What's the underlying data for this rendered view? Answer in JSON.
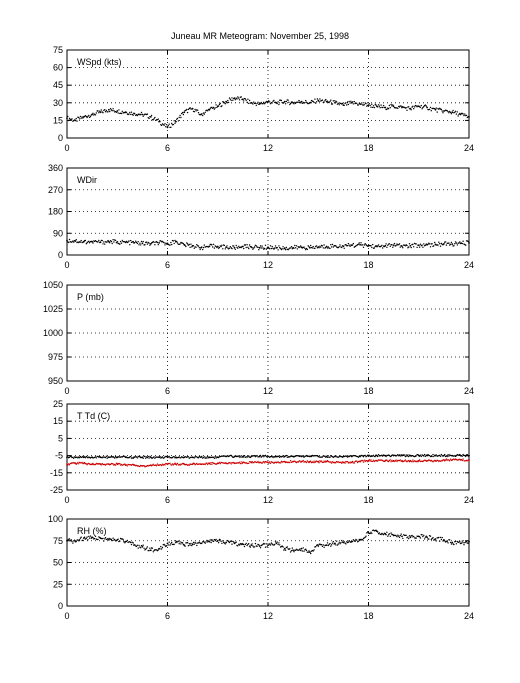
{
  "title": "Juneau MR Meteogram:  November 25, 1998",
  "chart_data": [
    {
      "type": "scatter",
      "panel_label": "WSpd (kts)",
      "xlim": [
        0,
        24
      ],
      "ylim": [
        0,
        75
      ],
      "xticks": [
        "0",
        "6",
        "12",
        "18",
        "24"
      ],
      "yticks": [
        "0",
        "15",
        "30",
        "45",
        "60",
        "75"
      ],
      "grid": true,
      "series": [
        {
          "color": "#000000",
          "x": [
            0,
            0.5,
            1,
            1.5,
            2,
            2.5,
            3,
            3.5,
            4,
            4.5,
            5,
            5.5,
            6,
            6.5,
            7,
            7.5,
            8,
            8.5,
            9,
            9.5,
            10,
            10.5,
            11,
            11.5,
            12,
            12.5,
            13,
            13.5,
            14,
            14.5,
            15,
            15.5,
            16,
            16.5,
            17,
            17.5,
            18,
            18.5,
            19,
            19.5,
            20,
            20.5,
            21,
            21.5,
            22,
            22.5,
            23,
            23.5,
            24
          ],
          "y": [
            17,
            15,
            18,
            20,
            22,
            24,
            23,
            22,
            21,
            20,
            18,
            14,
            9,
            14,
            22,
            25,
            20,
            24,
            27,
            31,
            34,
            33,
            30,
            29,
            31,
            30,
            31,
            30,
            31,
            30,
            32,
            31,
            30,
            28,
            30,
            29,
            28,
            27,
            26,
            27,
            26,
            25,
            27,
            26,
            24,
            23,
            22,
            20,
            18
          ]
        }
      ]
    },
    {
      "type": "scatter",
      "panel_label": "WDir",
      "xlim": [
        0,
        24
      ],
      "ylim": [
        0,
        360
      ],
      "xticks": [
        "0",
        "6",
        "12",
        "18",
        "24"
      ],
      "yticks": [
        "0",
        "90",
        "180",
        "270",
        "360"
      ],
      "grid": true,
      "series": [
        {
          "color": "#000000",
          "x": [
            0,
            0.5,
            1,
            1.5,
            2,
            2.5,
            3,
            3.5,
            4,
            4.5,
            5,
            5.5,
            6,
            6.5,
            7,
            7.5,
            8,
            8.5,
            9,
            9.5,
            10,
            10.5,
            11,
            11.5,
            12,
            12.5,
            13,
            13.5,
            14,
            14.5,
            15,
            15.5,
            16,
            16.5,
            17,
            17.5,
            18,
            18.5,
            19,
            19.5,
            20,
            20.5,
            21,
            21.5,
            22,
            22.5,
            23,
            23.5,
            24
          ],
          "y": [
            60,
            58,
            55,
            55,
            53,
            55,
            54,
            52,
            50,
            48,
            46,
            50,
            48,
            55,
            42,
            38,
            30,
            36,
            35,
            32,
            30,
            35,
            33,
            30,
            32,
            30,
            28,
            30,
            32,
            30,
            33,
            35,
            38,
            36,
            40,
            42,
            38,
            35,
            38,
            40,
            36,
            38,
            40,
            42,
            44,
            46,
            45,
            48,
            50
          ]
        }
      ]
    },
    {
      "type": "scatter",
      "panel_label": "P (mb)",
      "xlim": [
        0,
        24
      ],
      "ylim": [
        950,
        1050
      ],
      "xticks": [
        "0",
        "6",
        "12",
        "18",
        "24"
      ],
      "yticks": [
        "950",
        "975",
        "1000",
        "1025",
        "1050"
      ],
      "grid": true,
      "series": []
    },
    {
      "type": "scatter",
      "panel_label": "T Td (C)",
      "xlim": [
        0,
        24
      ],
      "ylim": [
        -25,
        25
      ],
      "xticks": [
        "0",
        "6",
        "12",
        "18",
        "24"
      ],
      "yticks": [
        "-25",
        "-15",
        "-5",
        "5",
        "15",
        "25"
      ],
      "grid": true,
      "series": [
        {
          "color": "#000000",
          "x": [
            0,
            0.5,
            1,
            1.5,
            2,
            2.5,
            3,
            3.5,
            4,
            4.5,
            5,
            5.5,
            6,
            6.5,
            7,
            7.5,
            8,
            8.5,
            9,
            9.5,
            10,
            10.5,
            11,
            11.5,
            12,
            12.5,
            13,
            13.5,
            14,
            14.5,
            15,
            15.5,
            16,
            16.5,
            17,
            17.5,
            18,
            18.5,
            19,
            19.5,
            20,
            20.5,
            21,
            21.5,
            22,
            22.5,
            23,
            23.5,
            24
          ],
          "y": [
            -6,
            -6,
            -6,
            -6,
            -6,
            -6,
            -6,
            -6,
            -6,
            -6,
            -6,
            -6,
            -6,
            -6,
            -6,
            -6,
            -6,
            -6,
            -6,
            -5.5,
            -5.5,
            -5.5,
            -5.5,
            -5.5,
            -5.5,
            -5.5,
            -5.5,
            -5.5,
            -5.5,
            -5.5,
            -5.5,
            -5.5,
            -5.5,
            -5.5,
            -5.5,
            -5.5,
            -5,
            -5,
            -5,
            -5,
            -5,
            -5,
            -5,
            -5,
            -5,
            -5,
            -5,
            -5,
            -5
          ]
        },
        {
          "color": "#cc0000",
          "x": [
            0,
            0.5,
            1,
            1.5,
            2,
            2.5,
            3,
            3.5,
            4,
            4.5,
            5,
            5.5,
            6,
            6.5,
            7,
            7.5,
            8,
            8.5,
            9,
            9.5,
            10,
            10.5,
            11,
            11.5,
            12,
            12.5,
            13,
            13.5,
            14,
            14.5,
            15,
            15.5,
            16,
            16.5,
            17,
            17.5,
            18,
            18.5,
            19,
            19.5,
            20,
            20.5,
            21,
            21.5,
            22,
            22.5,
            23,
            23.5,
            24
          ],
          "y": [
            -10,
            -9.5,
            -9.5,
            -10,
            -10,
            -10,
            -10,
            -10.5,
            -10.5,
            -11,
            -10.5,
            -10.5,
            -10,
            -10,
            -10,
            -10,
            -10,
            -9.5,
            -9.5,
            -9.5,
            -9.5,
            -9,
            -9,
            -9,
            -9,
            -9,
            -8.5,
            -8.5,
            -8.5,
            -8.5,
            -8.5,
            -8.5,
            -9,
            -9,
            -9,
            -8.5,
            -8,
            -8,
            -8,
            -8,
            -8,
            -8,
            -8,
            -8,
            -8,
            -7.5,
            -7.5,
            -7.5,
            -7.5
          ]
        }
      ]
    },
    {
      "type": "scatter",
      "panel_label": "RH (%)",
      "xlim": [
        0,
        24
      ],
      "ylim": [
        0,
        100
      ],
      "xticks": [
        "0",
        "6",
        "12",
        "18",
        "24"
      ],
      "yticks": [
        "0",
        "25",
        "50",
        "75",
        "100"
      ],
      "grid": true,
      "series": [
        {
          "color": "#000000",
          "x": [
            0,
            0.5,
            1,
            1.5,
            2,
            2.5,
            3,
            3.5,
            4,
            4.5,
            5,
            5.5,
            6,
            6.5,
            7,
            7.5,
            8,
            8.5,
            9,
            9.5,
            10,
            10.5,
            11,
            11.5,
            12,
            12.5,
            13,
            13.5,
            14,
            14.5,
            15,
            15.5,
            16,
            16.5,
            17,
            17.5,
            18,
            18.5,
            19,
            19.5,
            20,
            20.5,
            21,
            21.5,
            22,
            22.5,
            23,
            23.5,
            24
          ],
          "y": [
            75,
            74,
            78,
            79,
            78,
            76,
            76,
            74,
            70,
            68,
            64,
            66,
            72,
            73,
            70,
            71,
            72,
            74,
            75,
            73,
            72,
            71,
            70,
            69,
            70,
            72,
            66,
            64,
            66,
            62,
            69,
            70,
            72,
            73,
            74,
            76,
            84,
            86,
            83,
            81,
            80,
            79,
            80,
            79,
            77,
            76,
            73,
            72,
            74
          ]
        }
      ]
    }
  ]
}
